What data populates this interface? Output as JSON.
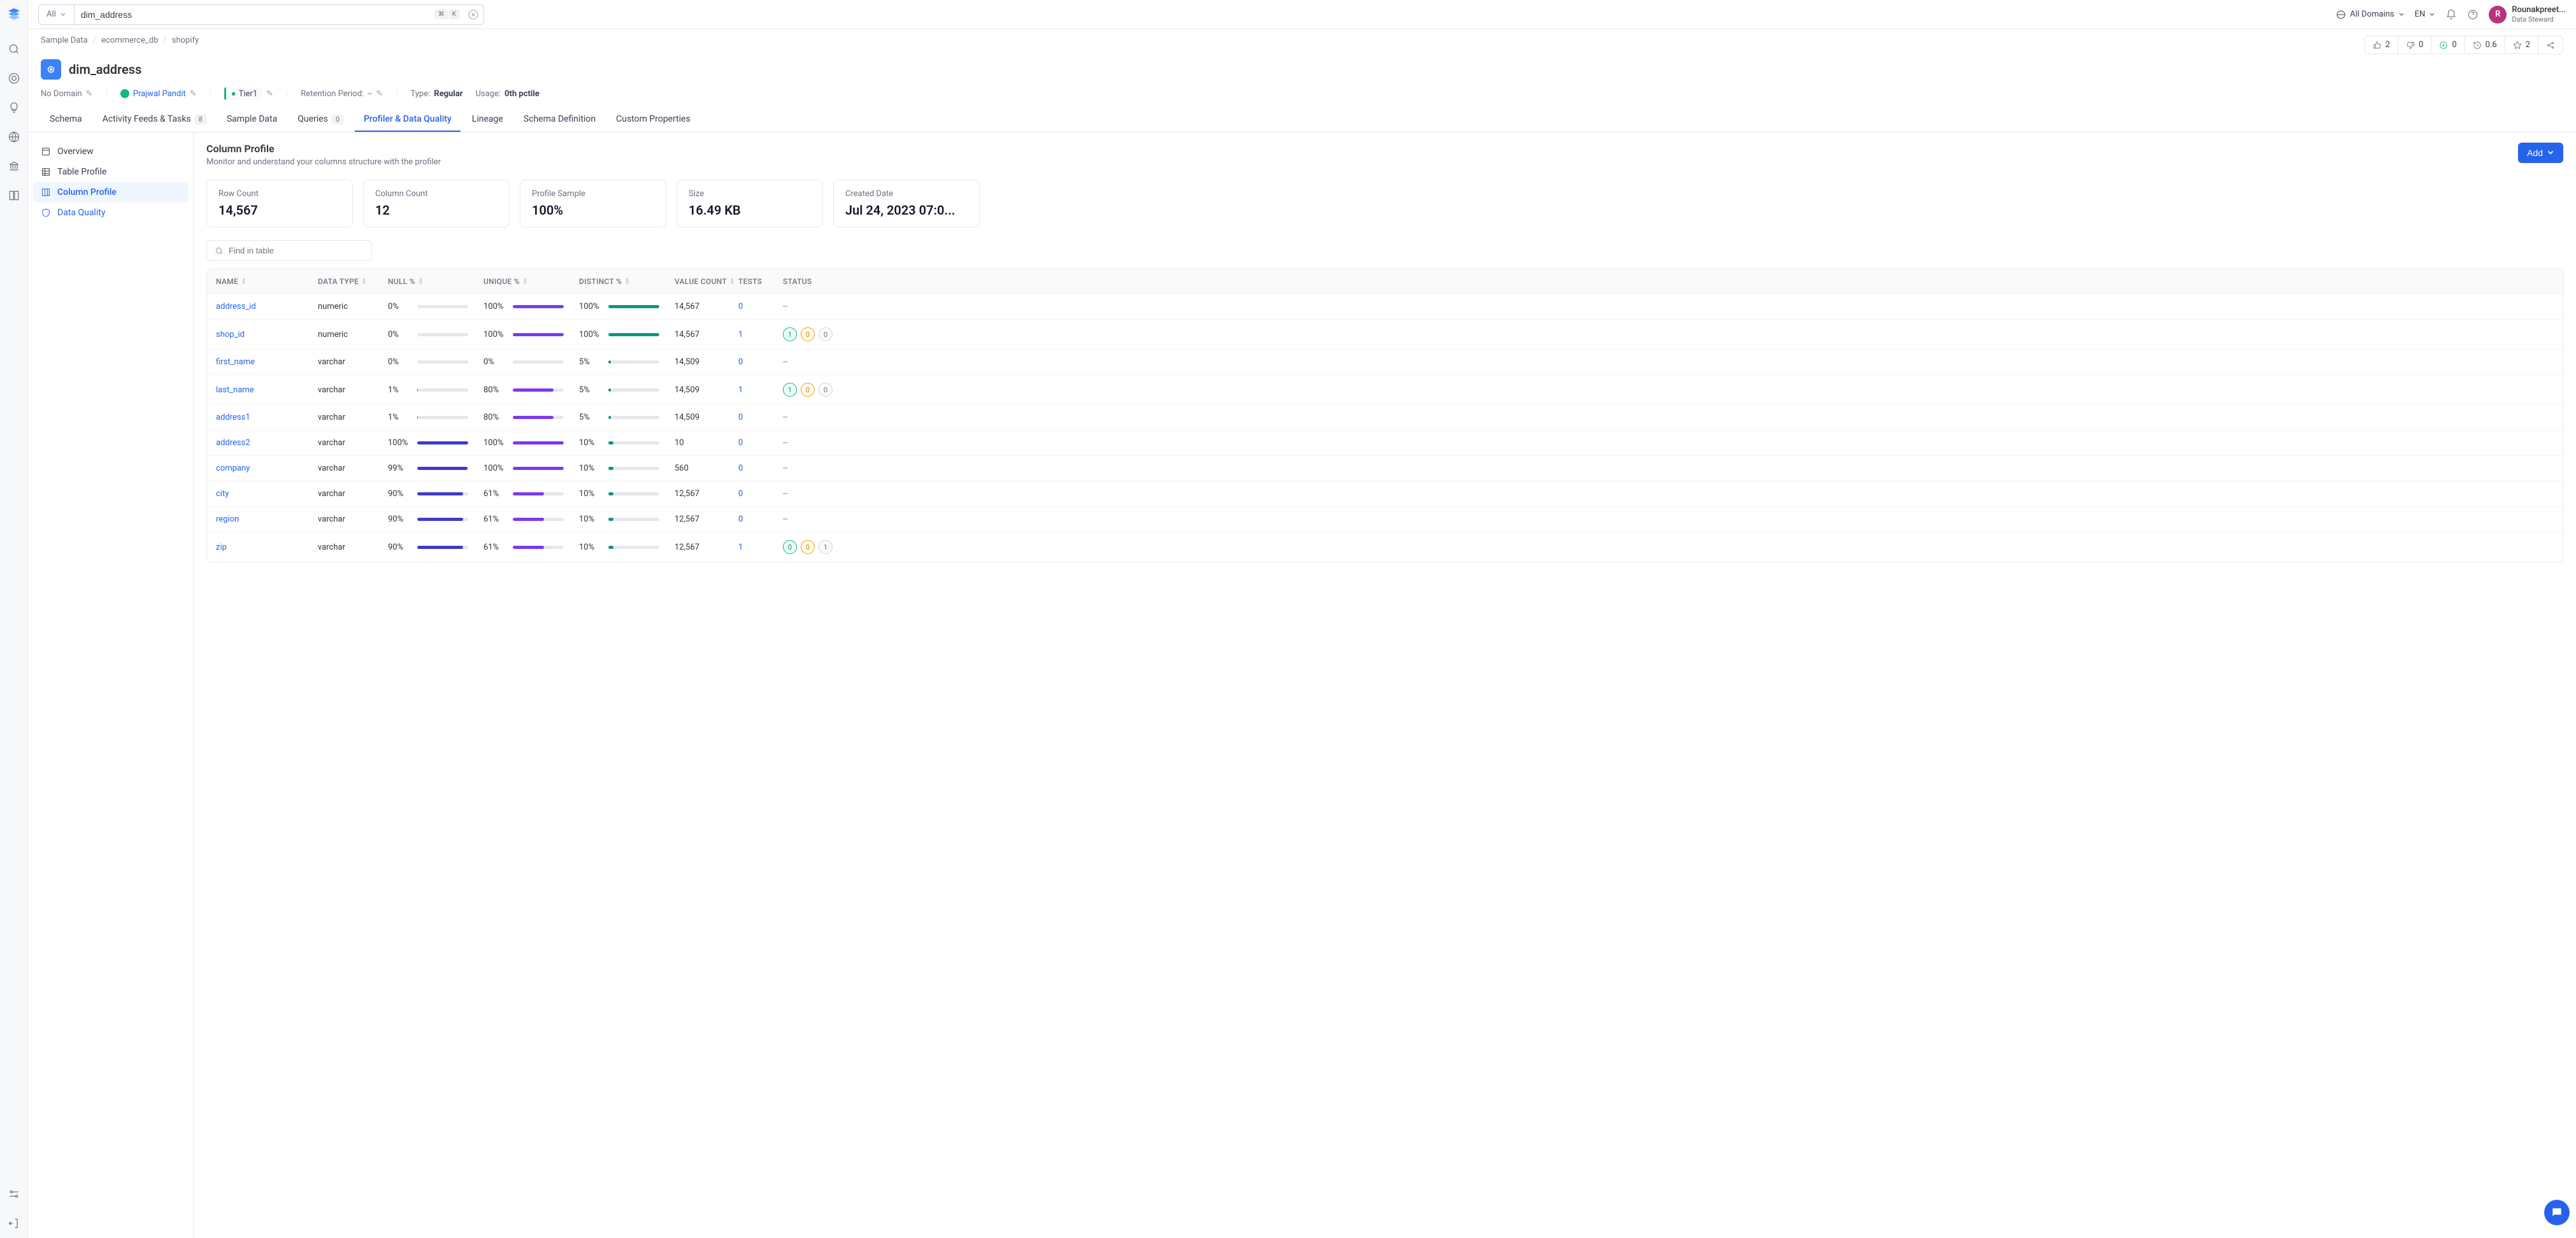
{
  "search": {
    "all_label": "All",
    "value": "dim_address",
    "kbd": [
      "⌘",
      "K"
    ]
  },
  "topbar": {
    "domains": "All Domains",
    "lang": "EN"
  },
  "user": {
    "initial": "R",
    "name": "Rounakpreet...",
    "role": "Data Steward"
  },
  "breadcrumb": [
    "Sample Data",
    "ecommerce_db",
    "shopify"
  ],
  "metrics": [
    {
      "icon": "thumbs-up",
      "value": "2",
      "color": "#6b7280"
    },
    {
      "icon": "thumbs-down",
      "value": "0",
      "color": "#6b7280"
    },
    {
      "icon": "plus-circle",
      "value": "0",
      "color": "#10b981"
    },
    {
      "icon": "history",
      "value": "0.6",
      "color": "#6b7280"
    },
    {
      "icon": "star",
      "value": "2",
      "color": "#6b7280"
    },
    {
      "icon": "share",
      "value": "",
      "color": "#6b7280"
    }
  ],
  "title": "dim_address",
  "meta": {
    "domain": "No Domain",
    "owner": "Prajwal Pandit",
    "tier": "Tier1",
    "retention_label": "Retention Period:",
    "retention_value": "--",
    "type_label": "Type:",
    "type_value": "Regular",
    "usage_label": "Usage:",
    "usage_value": "0th pctile"
  },
  "tabs": [
    {
      "label": "Schema",
      "badge": null,
      "active": false
    },
    {
      "label": "Activity Feeds & Tasks",
      "badge": "8",
      "active": false
    },
    {
      "label": "Sample Data",
      "badge": null,
      "active": false
    },
    {
      "label": "Queries",
      "badge": "0",
      "active": false
    },
    {
      "label": "Profiler & Data Quality",
      "badge": null,
      "active": true
    },
    {
      "label": "Lineage",
      "badge": null,
      "active": false
    },
    {
      "label": "Schema Definition",
      "badge": null,
      "active": false
    },
    {
      "label": "Custom Properties",
      "badge": null,
      "active": false
    }
  ],
  "side_nav": [
    {
      "label": "Overview",
      "icon": "overview",
      "active": false,
      "link": false
    },
    {
      "label": "Table Profile",
      "icon": "table",
      "active": false,
      "link": false
    },
    {
      "label": "Column Profile",
      "icon": "columns",
      "active": true,
      "link": false
    },
    {
      "label": "Data Quality",
      "icon": "quality",
      "active": false,
      "link": true
    }
  ],
  "panel": {
    "title": "Column Profile",
    "subtitle": "Monitor and understand your columns structure with the profiler",
    "add_label": "Add",
    "find_placeholder": "Find in table"
  },
  "stats": [
    {
      "label": "Row Count",
      "value": "14,567"
    },
    {
      "label": "Column Count",
      "value": "12"
    },
    {
      "label": "Profile Sample",
      "value": "100%"
    },
    {
      "label": "Size",
      "value": "16.49 KB"
    },
    {
      "label": "Created Date",
      "value": "Jul 24, 2023 07:0..."
    }
  ],
  "columns_header": [
    "NAME",
    "DATA TYPE",
    "NULL %",
    "UNIQUE %",
    "DISTINCT %",
    "VALUE COUNT",
    "TESTS",
    "STATUS"
  ],
  "bar_colors": {
    "null": "#4338ca",
    "unique": "#7c3aed",
    "distinct": "#0d9488"
  },
  "status_colors": {
    "green": {
      "bg": "#ecfdf5",
      "border": "#10b981",
      "text": "#059669"
    },
    "amber": {
      "bg": "#fffbeb",
      "border": "#f59e0b",
      "text": "#d97706"
    },
    "gray": {
      "bg": "#f9fafb",
      "border": "#d1d5db",
      "text": "#6b7280"
    }
  },
  "rows": [
    {
      "name": "address_id",
      "type": "numeric",
      "null": 0,
      "unique": 100,
      "distinct": 100,
      "count": "14,567",
      "tests": "0",
      "status": null
    },
    {
      "name": "shop_id",
      "type": "numeric",
      "null": 0,
      "unique": 100,
      "distinct": 100,
      "count": "14,567",
      "tests": "1",
      "status": [
        [
          "1",
          "green"
        ],
        [
          "0",
          "amber"
        ],
        [
          "0",
          "gray"
        ]
      ]
    },
    {
      "name": "first_name",
      "type": "varchar",
      "null": 0,
      "unique": 0,
      "distinct": 5,
      "count": "14,509",
      "tests": "0",
      "status": null
    },
    {
      "name": "last_name",
      "type": "varchar",
      "null": 1,
      "unique": 80,
      "distinct": 5,
      "count": "14,509",
      "tests": "1",
      "status": [
        [
          "1",
          "green"
        ],
        [
          "0",
          "amber"
        ],
        [
          "0",
          "gray"
        ]
      ]
    },
    {
      "name": "address1",
      "type": "varchar",
      "null": 1,
      "unique": 80,
      "distinct": 5,
      "count": "14,509",
      "tests": "0",
      "status": null
    },
    {
      "name": "address2",
      "type": "varchar",
      "null": 100,
      "unique": 100,
      "distinct": 10,
      "count": "10",
      "tests": "0",
      "status": null
    },
    {
      "name": "company",
      "type": "varchar",
      "null": 99,
      "unique": 100,
      "distinct": 10,
      "count": "560",
      "tests": "0",
      "status": null
    },
    {
      "name": "city",
      "type": "varchar",
      "null": 90,
      "unique": 61,
      "distinct": 10,
      "count": "12,567",
      "tests": "0",
      "status": null
    },
    {
      "name": "region",
      "type": "varchar",
      "null": 90,
      "unique": 61,
      "distinct": 10,
      "count": "12,567",
      "tests": "0",
      "status": null
    },
    {
      "name": "zip",
      "type": "varchar",
      "null": 90,
      "unique": 61,
      "distinct": 10,
      "count": "12,567",
      "tests": "1",
      "status": [
        [
          "0",
          "green"
        ],
        [
          "0",
          "amber"
        ],
        [
          "1",
          "gray"
        ]
      ]
    }
  ]
}
